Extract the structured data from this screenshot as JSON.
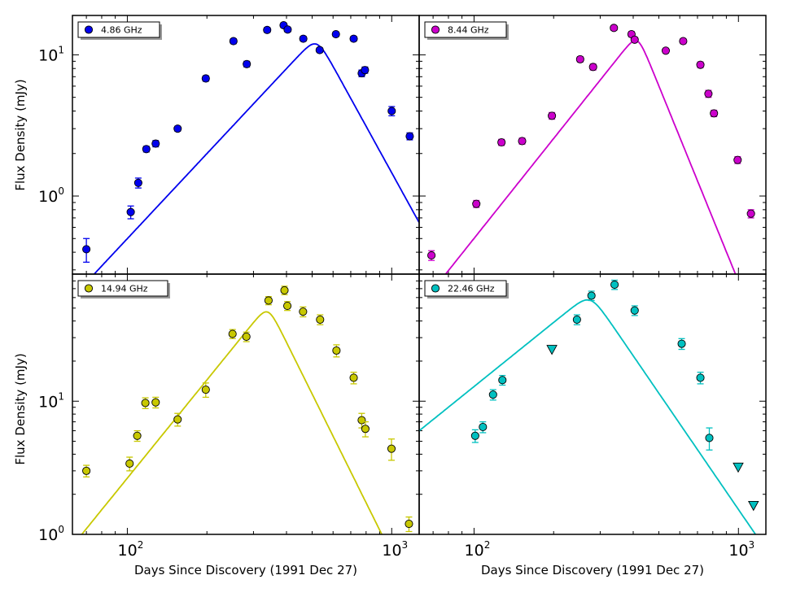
{
  "figure": {
    "ylabel": "Flux Density (mJy)",
    "xlabel": "Days Since Discovery (1991 Dec 27)",
    "x_ticks": [
      {
        "value": 100,
        "base": "10",
        "exp": "2"
      },
      {
        "value": 1000,
        "base": "10",
        "exp": "3"
      }
    ]
  },
  "chart_data": [
    {
      "type": "scatter",
      "title": "4.86 GHz",
      "legend": "4.86 GHz",
      "color": "#0000ee",
      "xscale": "log",
      "yscale": "log",
      "xlim": [
        62,
        1270
      ],
      "ylim": [
        0.28,
        19
      ],
      "y_ticks": [
        {
          "value": 1,
          "base": "10",
          "exp": "0"
        },
        {
          "value": 10,
          "base": "10",
          "exp": "1"
        }
      ],
      "points": [
        {
          "x": 70,
          "y": 0.42,
          "err": 0.08
        },
        {
          "x": 103,
          "y": 0.77,
          "err": 0.08
        },
        {
          "x": 110,
          "y": 1.24,
          "err": 0.1
        },
        {
          "x": 118,
          "y": 2.15,
          "err": 0.1
        },
        {
          "x": 128,
          "y": 2.35,
          "err": 0.12
        },
        {
          "x": 155,
          "y": 3.0,
          "err": 0.12
        },
        {
          "x": 198,
          "y": 6.8,
          "err": 0.3
        },
        {
          "x": 252,
          "y": 12.5,
          "err": 0.5
        },
        {
          "x": 283,
          "y": 8.6,
          "err": 0.4
        },
        {
          "x": 338,
          "y": 15.0,
          "err": 0.6
        },
        {
          "x": 390,
          "y": 16.2,
          "err": 0.6
        },
        {
          "x": 404,
          "y": 15.1,
          "err": 0.6
        },
        {
          "x": 463,
          "y": 13.0,
          "err": 0.5
        },
        {
          "x": 534,
          "y": 10.8,
          "err": 0.4
        },
        {
          "x": 615,
          "y": 14.0,
          "err": 0.5
        },
        {
          "x": 718,
          "y": 13.0,
          "err": 0.5
        },
        {
          "x": 770,
          "y": 7.4,
          "err": 0.4
        },
        {
          "x": 792,
          "y": 7.8,
          "err": 0.4
        },
        {
          "x": 1000,
          "y": 4.0,
          "err": 0.3
        },
        {
          "x": 1170,
          "y": 2.65,
          "err": 0.15
        }
      ],
      "model": {
        "peak_day": 520,
        "peak_flux": 13.5,
        "rise_slope": 2.0,
        "fall_slope": -3.4
      }
    },
    {
      "type": "scatter",
      "title": "8.44 GHz",
      "legend": "8.44 GHz",
      "color": "#cc00cc",
      "xscale": "log",
      "yscale": "log",
      "xlim": [
        62,
        1270
      ],
      "ylim": [
        0.28,
        19
      ],
      "y_ticks": [],
      "points": [
        {
          "x": 69,
          "y": 0.38,
          "err": 0.03
        },
        {
          "x": 102,
          "y": 0.88,
          "err": 0.05
        },
        {
          "x": 127,
          "y": 2.4,
          "err": 0.12
        },
        {
          "x": 152,
          "y": 2.45,
          "err": 0.12
        },
        {
          "x": 197,
          "y": 3.7,
          "err": 0.2
        },
        {
          "x": 252,
          "y": 9.3,
          "err": 0.4
        },
        {
          "x": 282,
          "y": 8.2,
          "err": 0.4
        },
        {
          "x": 338,
          "y": 15.5,
          "err": 0.6
        },
        {
          "x": 394,
          "y": 14.0,
          "err": 0.6
        },
        {
          "x": 405,
          "y": 12.8,
          "err": 0.5
        },
        {
          "x": 531,
          "y": 10.7,
          "err": 0.4
        },
        {
          "x": 618,
          "y": 12.5,
          "err": 0.5
        },
        {
          "x": 718,
          "y": 8.5,
          "err": 0.4
        },
        {
          "x": 770,
          "y": 5.3,
          "err": 0.3
        },
        {
          "x": 808,
          "y": 3.85,
          "err": 0.2
        },
        {
          "x": 993,
          "y": 1.8,
          "err": 0.1
        },
        {
          "x": 1115,
          "y": 0.75,
          "err": 0.05
        }
      ],
      "model": {
        "peak_day": 415,
        "peak_flux": 14.2,
        "rise_slope": 2.35,
        "fall_slope": -4.6
      }
    },
    {
      "type": "scatter",
      "title": "14.94 GHz",
      "legend": "14.94 GHz",
      "color": "#c8c800",
      "xscale": "log",
      "yscale": "log",
      "xlim": [
        62,
        1270
      ],
      "ylim": [
        1.0,
        90
      ],
      "y_ticks": [
        {
          "value": 1,
          "base": "10",
          "exp": "0"
        },
        {
          "value": 10,
          "base": "10",
          "exp": "1"
        }
      ],
      "points": [
        {
          "x": 70,
          "y": 3.0,
          "err": 0.3
        },
        {
          "x": 102,
          "y": 3.4,
          "err": 0.4
        },
        {
          "x": 109,
          "y": 5.5,
          "err": 0.5
        },
        {
          "x": 117,
          "y": 9.7,
          "err": 0.9
        },
        {
          "x": 128,
          "y": 9.8,
          "err": 0.9
        },
        {
          "x": 155,
          "y": 7.3,
          "err": 0.8
        },
        {
          "x": 198,
          "y": 12.2,
          "err": 1.5
        },
        {
          "x": 250,
          "y": 32.0,
          "err": 2.5
        },
        {
          "x": 282,
          "y": 30.5,
          "err": 2.5
        },
        {
          "x": 342,
          "y": 57.0,
          "err": 4
        },
        {
          "x": 393,
          "y": 68.0,
          "err": 5
        },
        {
          "x": 403,
          "y": 52.0,
          "err": 4
        },
        {
          "x": 462,
          "y": 47.0,
          "err": 4
        },
        {
          "x": 536,
          "y": 41.0,
          "err": 3.5
        },
        {
          "x": 618,
          "y": 24.0,
          "err": 2.5
        },
        {
          "x": 718,
          "y": 15.0,
          "err": 1.5
        },
        {
          "x": 770,
          "y": 7.2,
          "err": 0.9
        },
        {
          "x": 795,
          "y": 6.2,
          "err": 0.8
        },
        {
          "x": 998,
          "y": 4.4,
          "err": 0.8
        },
        {
          "x": 1162,
          "y": 1.2,
          "err": 0.15
        }
      ],
      "model": {
        "peak_day": 340,
        "peak_flux": 53,
        "rise_slope": 2.45,
        "fall_slope": -4.0
      }
    },
    {
      "type": "scatter",
      "title": "22.46 GHz",
      "legend": "22.46 GHz",
      "color": "#00c0c0",
      "xscale": "log",
      "yscale": "log",
      "xlim": [
        62,
        1270
      ],
      "ylim": [
        1.0,
        90
      ],
      "y_ticks": [],
      "points": [
        {
          "x": 101,
          "y": 5.5,
          "err": 0.6
        },
        {
          "x": 108,
          "y": 6.4,
          "err": 0.6
        },
        {
          "x": 118,
          "y": 11.2,
          "err": 1.0
        },
        {
          "x": 128,
          "y": 14.4,
          "err": 1.2
        },
        {
          "x": 245,
          "y": 41.0,
          "err": 3.5
        },
        {
          "x": 278,
          "y": 62.0,
          "err": 5
        },
        {
          "x": 340,
          "y": 75.0,
          "err": 6
        },
        {
          "x": 405,
          "y": 48.0,
          "err": 4
        },
        {
          "x": 610,
          "y": 27.0,
          "err": 2.5
        },
        {
          "x": 718,
          "y": 15.0,
          "err": 1.5
        },
        {
          "x": 776,
          "y": 5.3,
          "err": 1.0
        }
      ],
      "upper_limits": [
        {
          "x": 197,
          "y": 24.5
        },
        {
          "x": 998,
          "y": 3.2
        },
        {
          "x": 1140,
          "y": 1.65
        }
      ],
      "model": {
        "peak_day": 275,
        "peak_flux": 65,
        "rise_slope": 1.6,
        "fall_slope": -2.9
      }
    }
  ]
}
